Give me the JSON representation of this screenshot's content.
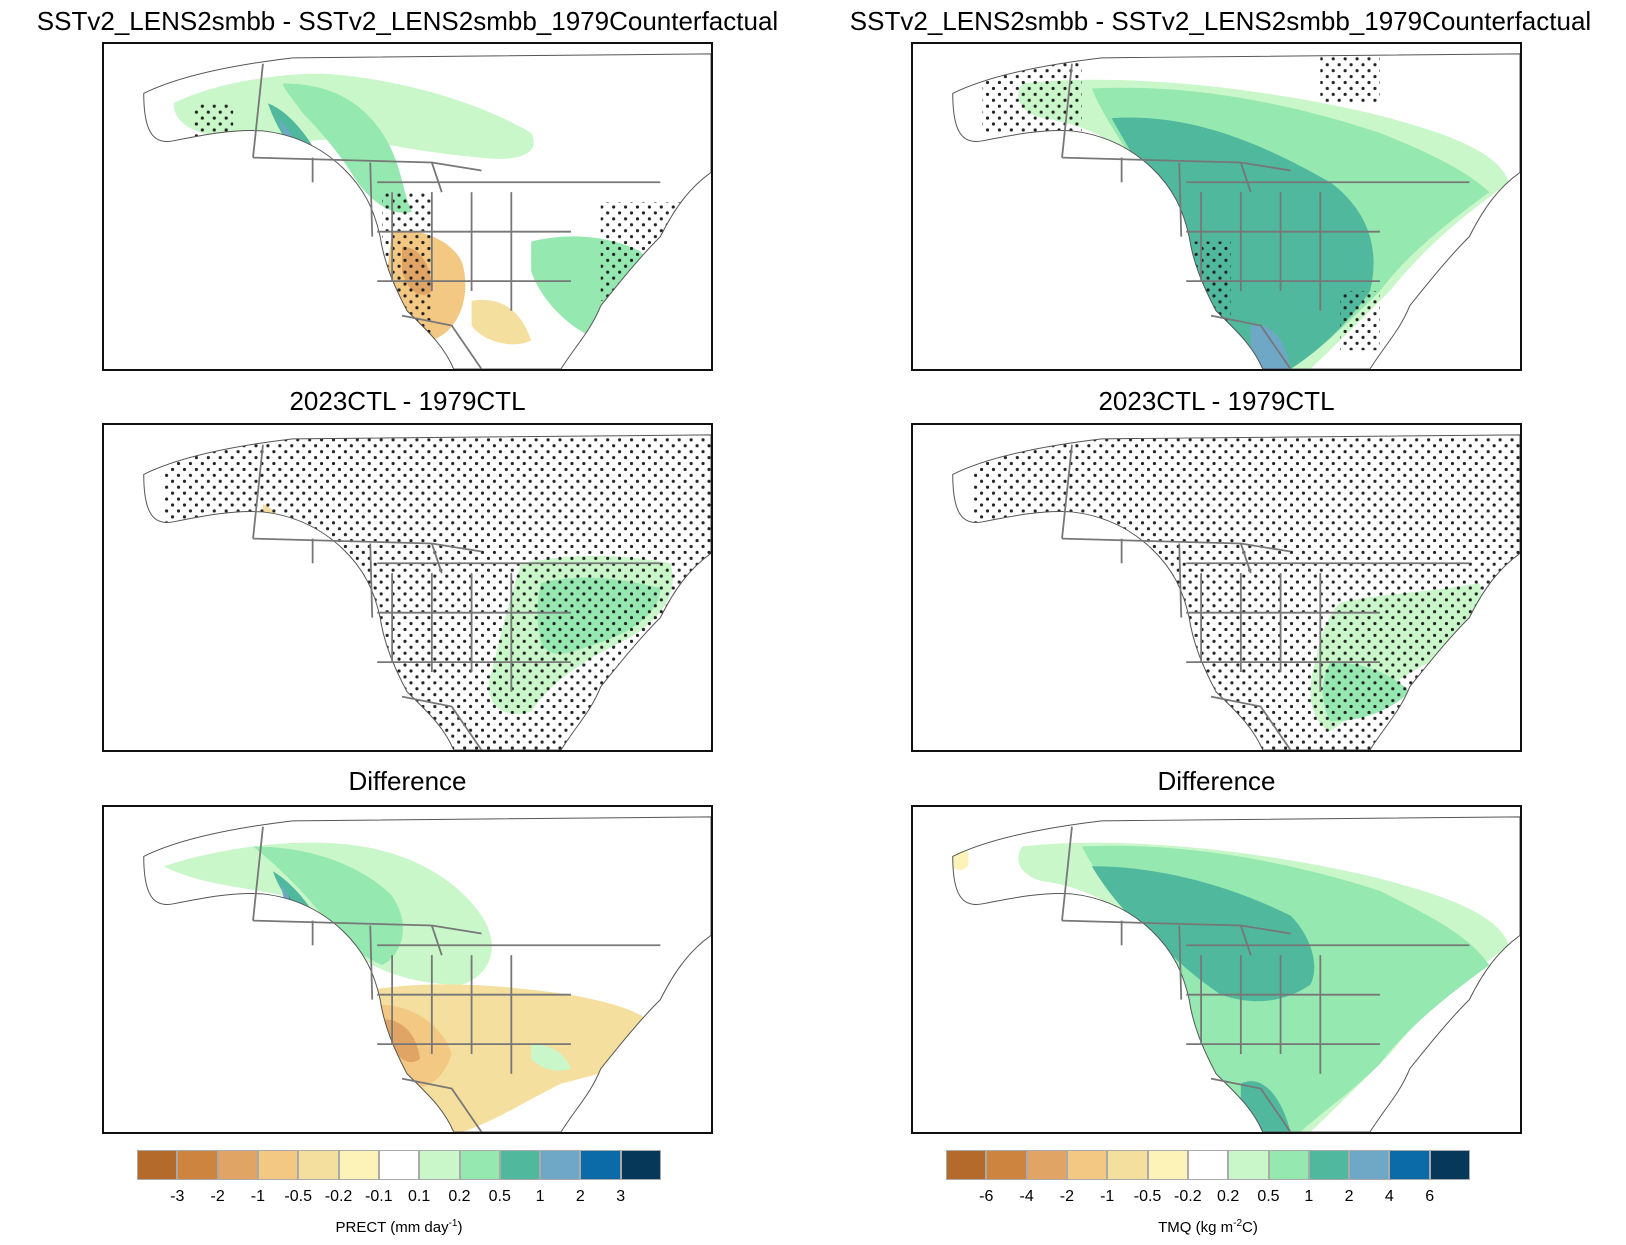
{
  "chart_data": [
    {
      "type": "heatmap",
      "panel": "top-left",
      "title": "SSTv2_LENS2smbb - SSTv2_LENS2smbb_1979Counterfactual",
      "variable": "PRECT",
      "region": "North America",
      "stippling": "significance dots",
      "description": "Wetter (green/blue) over Alaska panhandle, western/northern Canada and eastern US; drier (orange) over US Southwest and California"
    },
    {
      "type": "heatmap",
      "panel": "top-right",
      "title": "SSTv2_LENS2smbb - SSTv2_LENS2smbb_1979Counterfactual",
      "variable": "TMQ",
      "region": "North America",
      "stippling": "significance dots",
      "description": "Moistening (green) over most of continent, strongest over central/eastern US and Gulf coast; slight drying near Baja California"
    },
    {
      "type": "heatmap",
      "panel": "middle-left",
      "title": "2023CTL - 1979CTL",
      "variable": "PRECT",
      "region": "North America",
      "stippling": "significance dots",
      "description": "Mostly insignificant; wetter over eastern US and Quebec, slightly drier along Pacific Northwest coast"
    },
    {
      "type": "heatmap",
      "panel": "middle-right",
      "title": "2023CTL - 1979CTL",
      "variable": "TMQ",
      "region": "North America",
      "stippling": "significance dots",
      "description": "Mostly insignificant; moistening over southeastern US and eastern Canada"
    },
    {
      "type": "heatmap",
      "panel": "bottom-left",
      "title": "Difference",
      "variable": "PRECT",
      "region": "North America",
      "stippling": "none",
      "description": "Wetter over Alaska panhandle and western Canada; drier across US West, Plains and Northeast"
    },
    {
      "type": "heatmap",
      "panel": "bottom-right",
      "title": "Difference",
      "variable": "TMQ",
      "region": "North America",
      "stippling": "none",
      "description": "Moistening over western/central Canada, central US and Mexico; slight drying near Baja California and SW Alaska"
    }
  ],
  "colorbars": {
    "left": {
      "label_main": "PRECT (mm day",
      "label_sup": "-1",
      "label_end": ")",
      "ticks": [
        "-3",
        "-2",
        "-1",
        "-0.5",
        "-0.2",
        "-0.1",
        "0.1",
        "0.2",
        "0.5",
        "1",
        "2",
        "3"
      ]
    },
    "right": {
      "label_main": "TMQ (kg m",
      "label_sup": "-2",
      "label_end": "C)",
      "ticks": [
        "-6",
        "-4",
        "-2",
        "-1",
        "-0.5",
        "-0.2",
        "0.2",
        "0.5",
        "1",
        "2",
        "4",
        "6"
      ]
    },
    "colors": [
      "#b46a2a",
      "#cc843f",
      "#e0a464",
      "#f2c882",
      "#f5df9e",
      "#fdf3b8",
      "#ffffff",
      "#c9f7c9",
      "#95e8b0",
      "#50b99d",
      "#6fa8c6",
      "#0b6aa8",
      "#053859"
    ]
  },
  "titles": {
    "top": "SSTv2_LENS2smbb - SSTv2_LENS2smbb_1979Counterfactual",
    "middle": "2023CTL - 1979CTL",
    "bottom": "Difference"
  }
}
